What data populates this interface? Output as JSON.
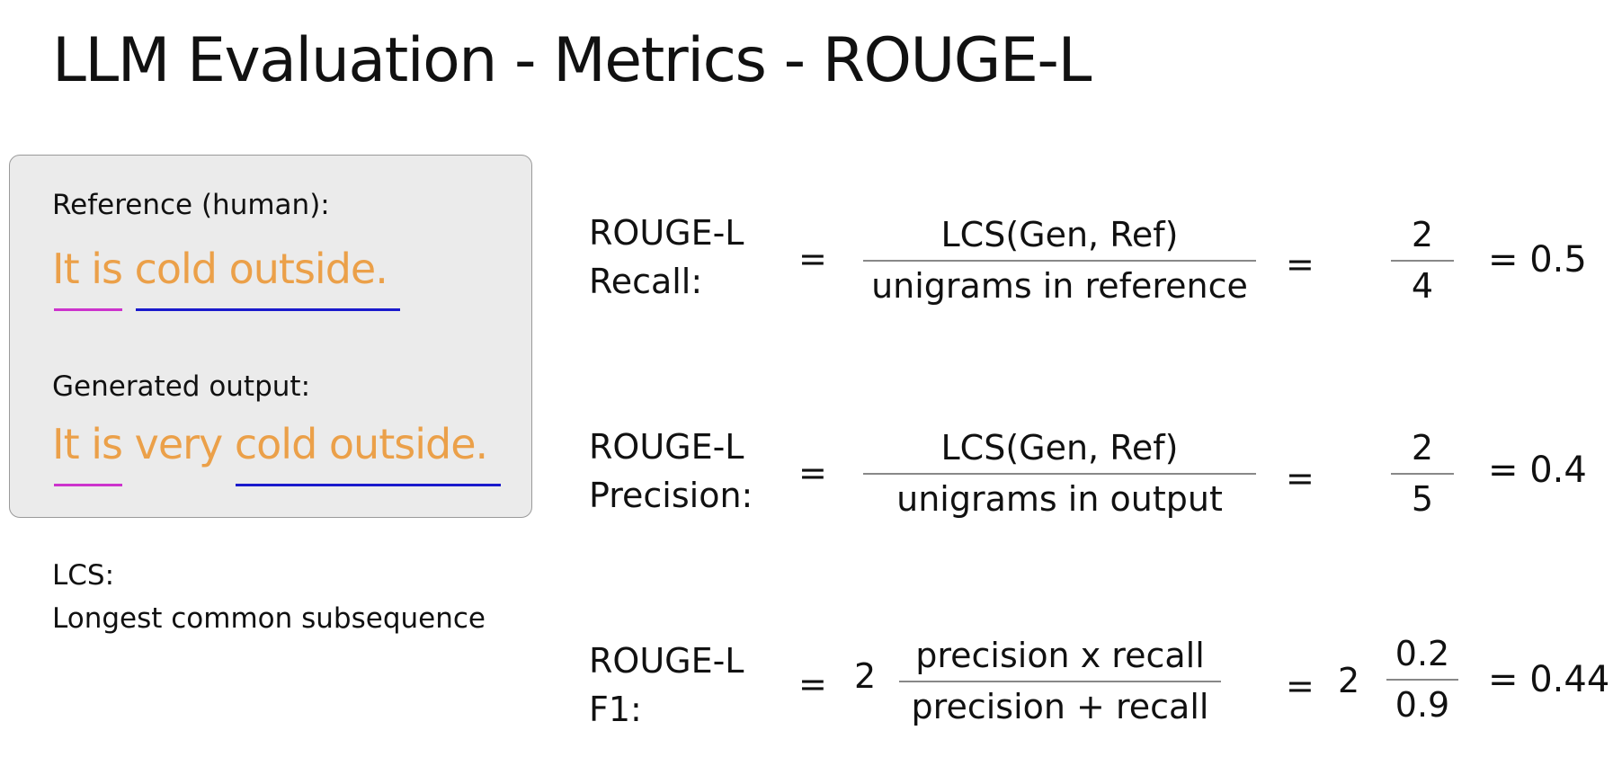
{
  "title": "LLM Evaluation - Metrics - ROUGE-L",
  "example": {
    "reference_label": "Reference (human):",
    "reference_sentence": "It is cold outside.",
    "generated_label": "Generated output:",
    "generated_sentence": "It is very cold outside."
  },
  "lcs_note": {
    "term": "LCS:",
    "definition": "Longest common subsequence"
  },
  "formulas": {
    "recall": {
      "name_line1": "ROUGE-L",
      "name_line2": "Recall:",
      "eq1": "=",
      "numerator": "LCS(Gen, Ref)",
      "denominator": "unigrams in reference",
      "eq2": "=",
      "value_num": "2",
      "value_den": "4",
      "result": "= 0.5"
    },
    "precision": {
      "name_line1": "ROUGE-L",
      "name_line2": "Precision:",
      "eq1": "=",
      "numerator": "LCS(Gen, Ref)",
      "denominator": "unigrams in output",
      "eq2": "=",
      "value_num": "2",
      "value_den": "5",
      "result": "= 0.4"
    },
    "f1": {
      "name_line1": "ROUGE-L",
      "name_line2": "F1:",
      "eq1": "=",
      "coef1": "2",
      "numerator": "precision x recall",
      "denominator": "precision + recall",
      "eq2": "=",
      "coef2": "2",
      "value_num": "0.2",
      "value_den": "0.9",
      "result": "= 0.44"
    }
  },
  "colors": {
    "sentence_text": "#eba049",
    "underline_it_is": "#cc33cc",
    "underline_cold_outside": "#1a1acc",
    "example_box_bg": "#ebebeb"
  }
}
